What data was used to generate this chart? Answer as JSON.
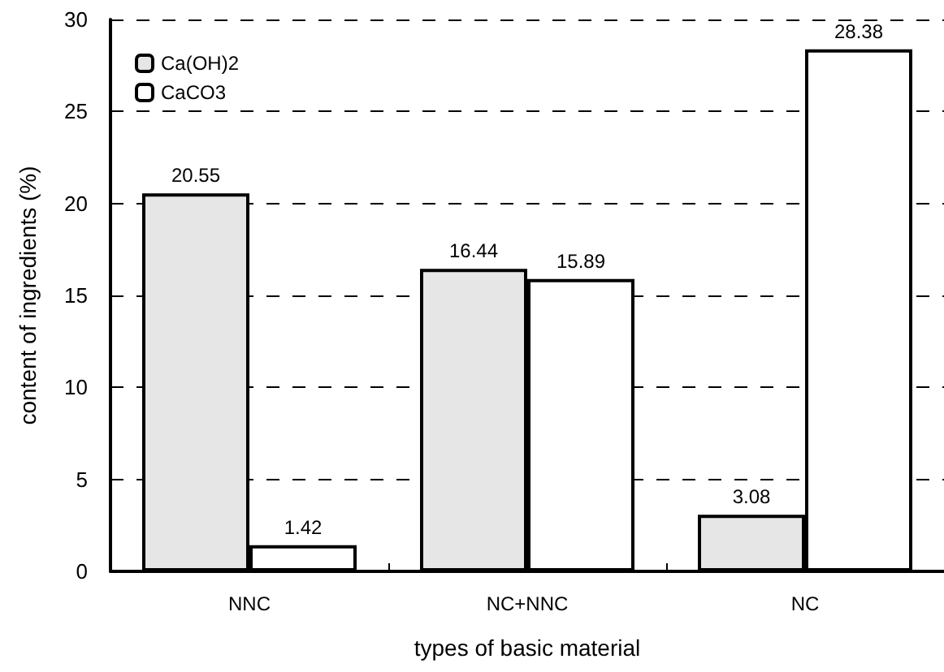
{
  "chart_data": {
    "type": "bar",
    "xlabel": "types of basic material",
    "ylabel": "content of ingredients (%)",
    "categories": [
      "NNC",
      "NC+NNC",
      "NC"
    ],
    "series": [
      {
        "name": "Ca(OH)2",
        "color": "#e6e6e6",
        "values": [
          20.55,
          16.44,
          3.08
        ]
      },
      {
        "name": "CaCO3",
        "color": "#ffffff",
        "values": [
          1.42,
          15.89,
          28.38
        ]
      }
    ],
    "ylim": [
      0,
      30
    ],
    "yticks": [
      0,
      5,
      10,
      15,
      20,
      25,
      30
    ],
    "grid": "y",
    "legend": "top left",
    "data_labels": true
  }
}
